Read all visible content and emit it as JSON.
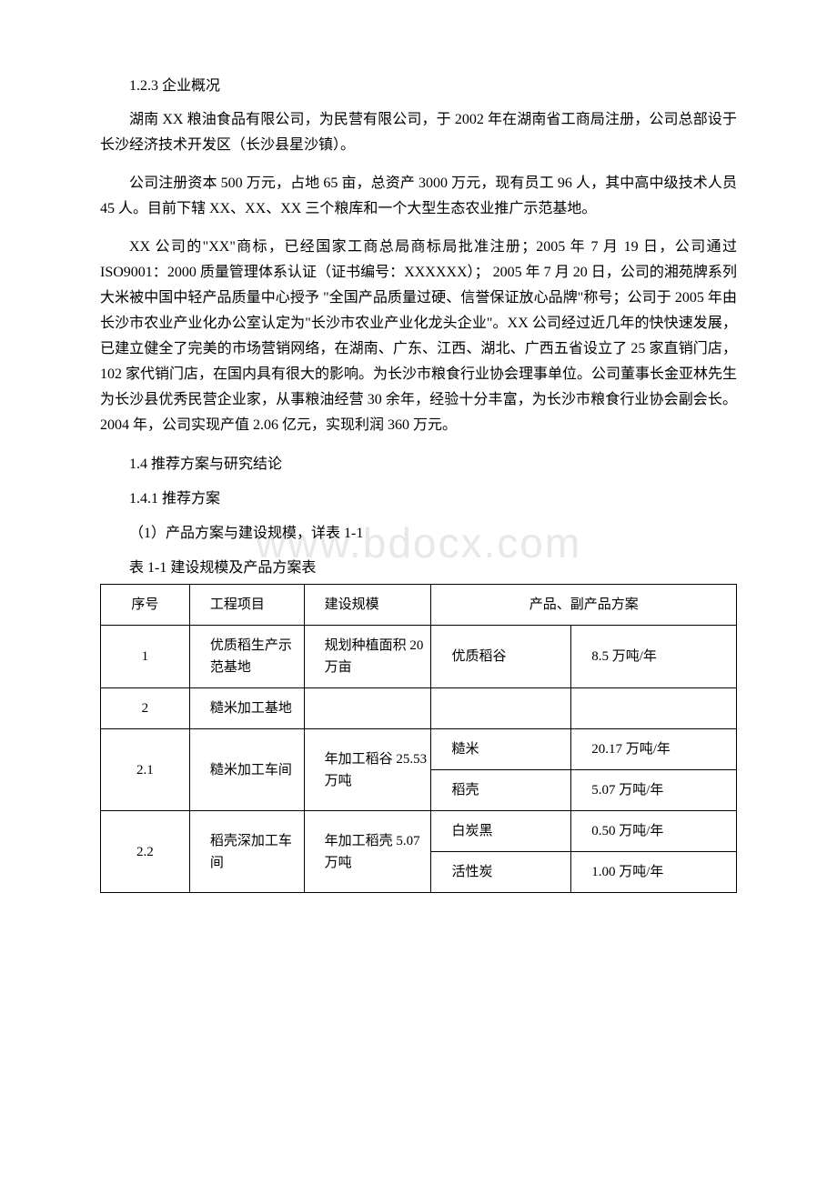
{
  "watermark": "www.bdocx.com",
  "heading_1_2_3": "1.2.3 企业概况",
  "para1": "湖南 XX 粮油食品有限公司，为民营有限公司，于 2002 年在湖南省工商局注册，公司总部设于长沙经济技术开发区（长沙县星沙镇）。",
  "para2": "公司注册资本 500 万元，占地 65 亩，总资产 3000 万元，现有员工 96 人，其中高中级技术人员 45 人。目前下辖 XX、XX、XX 三个粮库和一个大型生态农业推广示范基地。",
  "para3": "XX 公司的\"XX\"商标，已经国家工商总局商标局批准注册；2005 年 7 月 19 日，公司通过 ISO9001：2000 质量管理体系认证（证书编号：XXXXXX）； 2005 年 7 月 20 日，公司的湘苑牌系列大米被中国中轻产品质量中心授予 \"全国产品质量过硬、信誉保证放心品牌\"称号；公司于 2005 年由长沙市农业产业化办公室认定为\"长沙市农业产业化龙头企业\"。XX 公司经过近几年的快快速发展，已建立健全了完美的市场营销网络，在湖南、广东、江西、湖北、广西五省设立了 25 家直销门店，102 家代销门店，在国内具有很大的影响。为长沙市粮食行业协会理事单位。公司董事长金亚林先生为长沙县优秀民营企业家，从事粮油经营 30 余年，经验十分丰富，为长沙市粮食行业协会副会长。2004 年，公司实现产值 2.06 亿元，实现利润 360 万元。",
  "heading_1_4": "1.4 推荐方案与研究结论",
  "heading_1_4_1": "1.4.1 推荐方案",
  "line_plan": "（1）产品方案与建设规模，详表 1-1",
  "table_caption": "表 1-1 建设规模及产品方案表",
  "table": {
    "header": {
      "seq": "序号",
      "project": "工程项目",
      "scale": "建设规模",
      "product": "产品、副产品方案"
    },
    "rows": [
      {
        "seq": "1",
        "project": "优质稻生产示范基地",
        "scale": "规划种植面积 20 万亩",
        "product": "优质稻谷",
        "output": "8.5 万吨/年"
      },
      {
        "seq": "2",
        "project": "糙米加工基地",
        "scale": "",
        "product": "",
        "output": ""
      },
      {
        "seq": "2.1",
        "project": "糙米加工车间",
        "scale": "年加工稻谷 25.53 万吨",
        "sub": [
          {
            "product": "糙米",
            "output": "20.17 万吨/年"
          },
          {
            "product": "稻壳",
            "output": "5.07 万吨/年"
          }
        ]
      },
      {
        "seq": "2.2",
        "project": "稻壳深加工车间",
        "scale": "年加工稻壳 5.07 万吨",
        "sub": [
          {
            "product": "白炭黑",
            "output": "0.50 万吨/年"
          },
          {
            "product": "活性炭",
            "output": "1.00 万吨/年"
          }
        ]
      }
    ]
  }
}
